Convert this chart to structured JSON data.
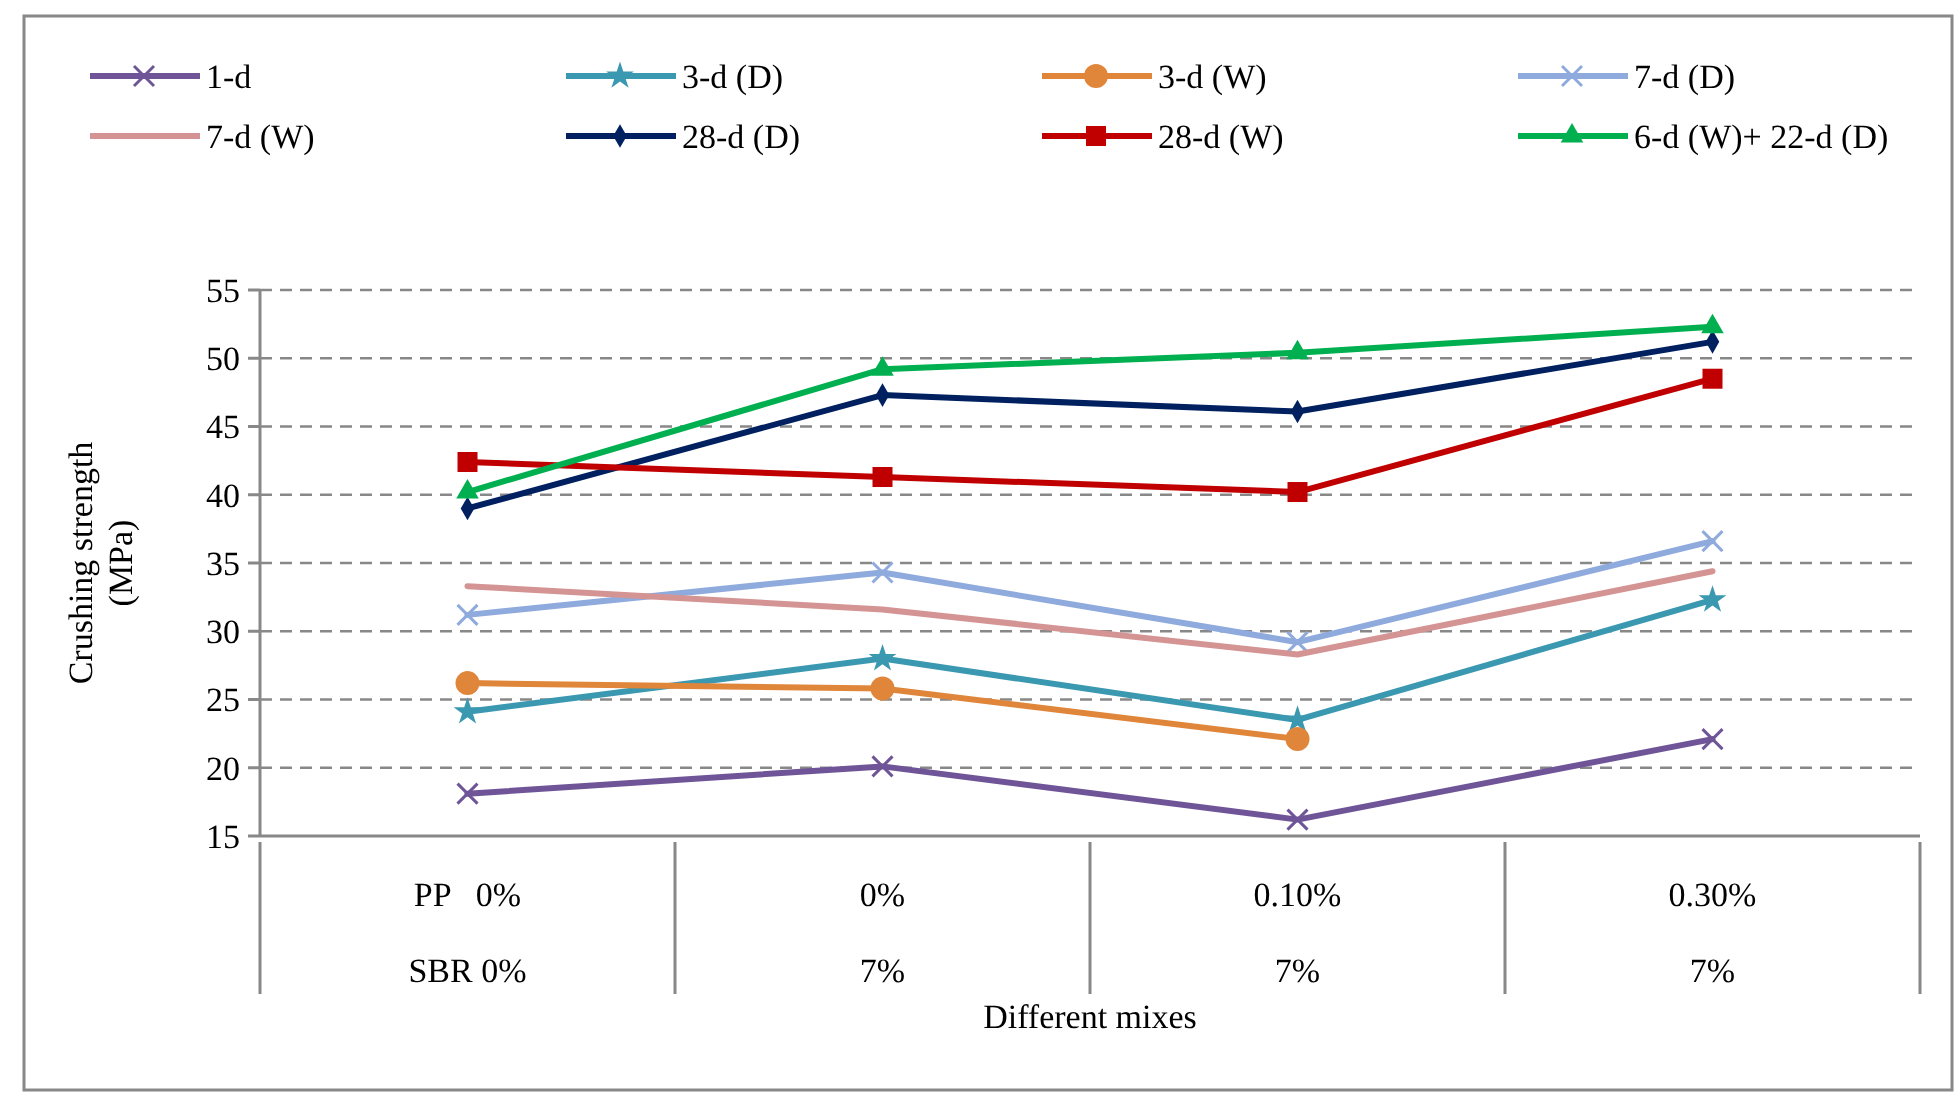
{
  "chart_data": {
    "type": "line",
    "xlabel": "Different mixes",
    "ylabel": "Crushing strength\n(MPa)",
    "categories": [
      "PP   0%\nSBR 0%",
      "0%\n7%",
      "0.10%\n7%",
      "0.30%\n7%"
    ],
    "ylim": [
      15,
      55
    ],
    "yticks": [
      15,
      20,
      25,
      30,
      35,
      40,
      45,
      50,
      55
    ],
    "grid": "y",
    "legend": "top",
    "series": [
      {
        "name": "1-d",
        "color": "#6f5597",
        "marker": "cross",
        "values": [
          18.1,
          20.1,
          16.2,
          22.1
        ]
      },
      {
        "name": "3-d (D)",
        "color": "#3a98b0",
        "marker": "star",
        "values": [
          24.1,
          28.0,
          23.5,
          32.3
        ]
      },
      {
        "name": "3-d (W)",
        "color": "#e0863a",
        "marker": "circle",
        "values": [
          26.2,
          25.8,
          22.1,
          null
        ]
      },
      {
        "name": "7-d (D)",
        "color": "#8faadc",
        "marker": "cross",
        "values": [
          31.2,
          34.3,
          29.2,
          36.6
        ]
      },
      {
        "name": "7-d (W)",
        "color": "#d49494",
        "marker": "none",
        "values": [
          33.3,
          31.6,
          28.3,
          34.4
        ]
      },
      {
        "name": "28-d (D)",
        "color": "#002060",
        "marker": "diamond",
        "values": [
          39.0,
          47.3,
          46.1,
          51.2
        ]
      },
      {
        "name": "28-d (W)",
        "color": "#c00000",
        "marker": "square",
        "values": [
          42.4,
          41.3,
          40.2,
          48.5
        ]
      },
      {
        "name": "6-d (W)+ 22-d (D)",
        "color": "#00b050",
        "marker": "triangle",
        "values": [
          40.2,
          49.2,
          50.4,
          52.3
        ]
      }
    ]
  }
}
